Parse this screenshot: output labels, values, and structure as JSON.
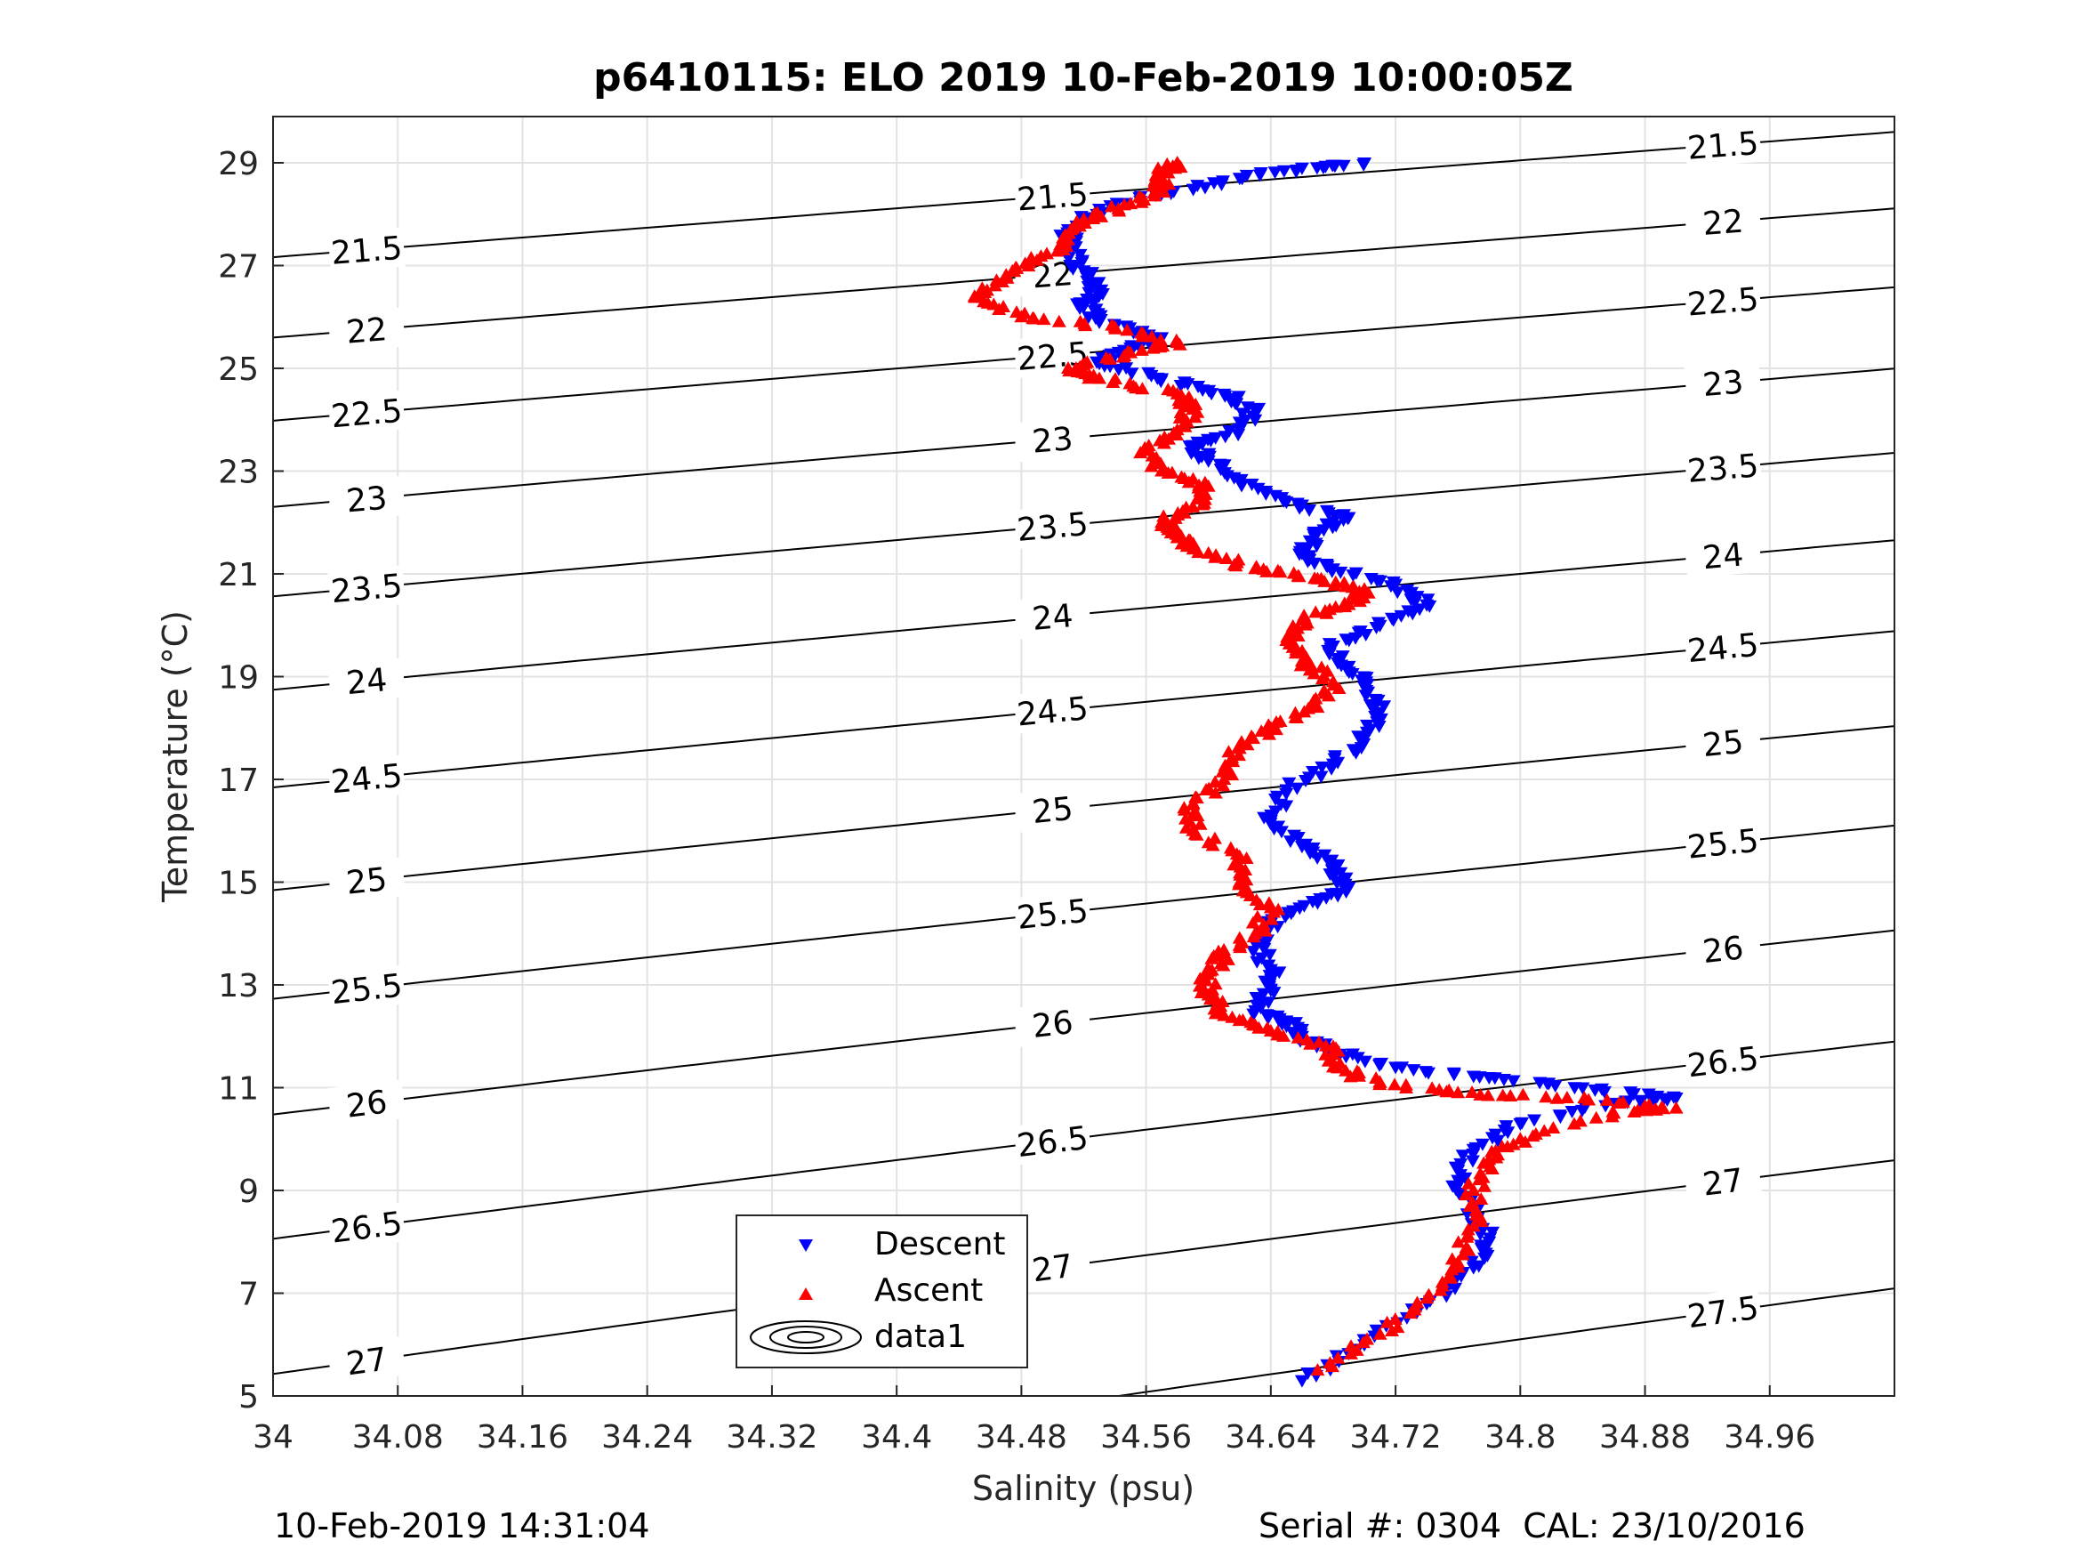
{
  "chart_data": {
    "type": "scatter",
    "title": "p6410115: ELO 2019 10-Feb-2019 10:00:05Z",
    "xlabel": "Salinity (psu)",
    "ylabel": "Temperature (°C)",
    "xlim": [
      34.0,
      35.04
    ],
    "ylim": [
      5,
      29.9
    ],
    "xticks": [
      34,
      34.08,
      34.16,
      34.24,
      34.32,
      34.4,
      34.48,
      34.56,
      34.64,
      34.72,
      34.8,
      34.88,
      34.96
    ],
    "xtick_labels": [
      "34",
      "34.08",
      "34.16",
      "34.24",
      "34.32",
      "34.4",
      "34.48",
      "34.56",
      "34.64",
      "34.72",
      "34.8",
      "34.88",
      "34.96"
    ],
    "yticks": [
      5,
      7,
      9,
      11,
      13,
      15,
      17,
      19,
      21,
      23,
      25,
      27,
      29
    ],
    "ytick_labels": [
      "5",
      "7",
      "9",
      "11",
      "13",
      "15",
      "17",
      "19",
      "21",
      "23",
      "25",
      "27",
      "29"
    ],
    "grid": true,
    "legend_position": "bottom-center",
    "density_contours": {
      "levels": [
        "21.5",
        "22",
        "22.5",
        "23",
        "23.5",
        "24",
        "24.5",
        "25",
        "25.5",
        "26",
        "26.5",
        "27",
        "27.5"
      ],
      "level_values": [
        21.5,
        22,
        22.5,
        23,
        23.5,
        24,
        24.5,
        25,
        25.5,
        26,
        26.5,
        27,
        27.5
      ],
      "color": "#000000"
    },
    "series": [
      {
        "name": "Descent",
        "marker": "triangle-down",
        "color": "#0000ff",
        "points": [
          [
            34.66,
            5.3
          ],
          [
            34.7,
            6.0
          ],
          [
            34.74,
            6.8
          ],
          [
            34.77,
            7.5
          ],
          [
            34.78,
            8.0
          ],
          [
            34.77,
            8.6
          ],
          [
            34.76,
            9.2
          ],
          [
            34.77,
            9.8
          ],
          [
            34.8,
            10.3
          ],
          [
            34.86,
            10.7
          ],
          [
            34.9,
            10.8
          ],
          [
            34.84,
            11.0
          ],
          [
            34.78,
            11.2
          ],
          [
            34.72,
            11.4
          ],
          [
            34.68,
            11.7
          ],
          [
            34.66,
            12.0
          ],
          [
            34.65,
            12.3
          ],
          [
            34.63,
            12.5
          ],
          [
            34.64,
            12.9
          ],
          [
            34.64,
            13.3
          ],
          [
            34.63,
            13.8
          ],
          [
            34.64,
            14.2
          ],
          [
            34.67,
            14.6
          ],
          [
            34.69,
            14.9
          ],
          [
            34.68,
            15.3
          ],
          [
            34.66,
            15.7
          ],
          [
            34.64,
            16.2
          ],
          [
            34.65,
            16.8
          ],
          [
            34.68,
            17.3
          ],
          [
            34.7,
            17.8
          ],
          [
            34.71,
            18.3
          ],
          [
            34.7,
            18.8
          ],
          [
            34.69,
            19.2
          ],
          [
            34.68,
            19.6
          ],
          [
            34.71,
            20.0
          ],
          [
            34.74,
            20.4
          ],
          [
            34.72,
            20.8
          ],
          [
            34.68,
            21.1
          ],
          [
            34.66,
            21.4
          ],
          [
            34.67,
            21.8
          ],
          [
            34.69,
            22.1
          ],
          [
            34.65,
            22.4
          ],
          [
            34.62,
            22.8
          ],
          [
            34.6,
            23.2
          ],
          [
            34.59,
            23.5
          ],
          [
            34.62,
            23.8
          ],
          [
            34.63,
            24.2
          ],
          [
            34.61,
            24.5
          ],
          [
            34.57,
            24.8
          ],
          [
            34.53,
            25.1
          ],
          [
            34.55,
            25.4
          ],
          [
            34.57,
            25.6
          ],
          [
            34.53,
            25.9
          ],
          [
            34.52,
            26.2
          ],
          [
            34.53,
            26.5
          ],
          [
            34.52,
            26.9
          ],
          [
            34.51,
            27.3
          ],
          [
            34.51,
            27.7
          ],
          [
            34.53,
            28.1
          ],
          [
            34.57,
            28.4
          ],
          [
            34.62,
            28.7
          ],
          [
            34.66,
            28.9
          ],
          [
            34.7,
            29.0
          ]
        ]
      },
      {
        "name": "Ascent",
        "marker": "triangle-up",
        "color": "#ff0000",
        "points": [
          [
            34.67,
            5.5
          ],
          [
            34.71,
            6.2
          ],
          [
            34.74,
            6.9
          ],
          [
            34.76,
            7.6
          ],
          [
            34.77,
            8.3
          ],
          [
            34.77,
            9.0
          ],
          [
            34.78,
            9.6
          ],
          [
            34.8,
            10.0
          ],
          [
            34.86,
            10.5
          ],
          [
            34.9,
            10.6
          ],
          [
            34.83,
            10.8
          ],
          [
            34.76,
            10.9
          ],
          [
            34.71,
            11.1
          ],
          [
            34.68,
            11.4
          ],
          [
            34.68,
            11.8
          ],
          [
            34.64,
            12.1
          ],
          [
            34.61,
            12.4
          ],
          [
            34.6,
            12.8
          ],
          [
            34.6,
            13.2
          ],
          [
            34.61,
            13.6
          ],
          [
            34.63,
            14.0
          ],
          [
            34.64,
            14.5
          ],
          [
            34.62,
            15.0
          ],
          [
            34.62,
            15.5
          ],
          [
            34.59,
            16.0
          ],
          [
            34.59,
            16.5
          ],
          [
            34.61,
            17.0
          ],
          [
            34.62,
            17.6
          ],
          [
            34.64,
            18.0
          ],
          [
            34.67,
            18.4
          ],
          [
            34.68,
            18.9
          ],
          [
            34.66,
            19.3
          ],
          [
            34.65,
            19.7
          ],
          [
            34.66,
            20.1
          ],
          [
            34.69,
            20.4
          ],
          [
            34.7,
            20.7
          ],
          [
            34.67,
            20.9
          ],
          [
            34.63,
            21.1
          ],
          [
            34.6,
            21.4
          ],
          [
            34.58,
            21.7
          ],
          [
            34.57,
            22.0
          ],
          [
            34.59,
            22.3
          ],
          [
            34.6,
            22.7
          ],
          [
            34.57,
            23.0
          ],
          [
            34.56,
            23.4
          ],
          [
            34.58,
            23.8
          ],
          [
            34.59,
            24.2
          ],
          [
            34.58,
            24.5
          ],
          [
            34.53,
            24.8
          ],
          [
            34.51,
            25.0
          ],
          [
            34.55,
            25.3
          ],
          [
            34.58,
            25.5
          ],
          [
            34.54,
            25.8
          ],
          [
            34.48,
            26.0
          ],
          [
            34.45,
            26.4
          ],
          [
            34.47,
            26.8
          ],
          [
            34.49,
            27.1
          ],
          [
            34.51,
            27.5
          ],
          [
            34.52,
            27.9
          ],
          [
            34.55,
            28.2
          ],
          [
            34.57,
            28.5
          ],
          [
            34.57,
            28.8
          ],
          [
            34.58,
            29.0
          ]
        ]
      }
    ],
    "legend": {
      "entries": [
        "Descent",
        "Ascent",
        "data1"
      ]
    }
  },
  "footer": {
    "timestamp": "10-Feb-2019 14:31:04",
    "serial_cal": "Serial #: 0304  CAL: 23/10/2016"
  }
}
